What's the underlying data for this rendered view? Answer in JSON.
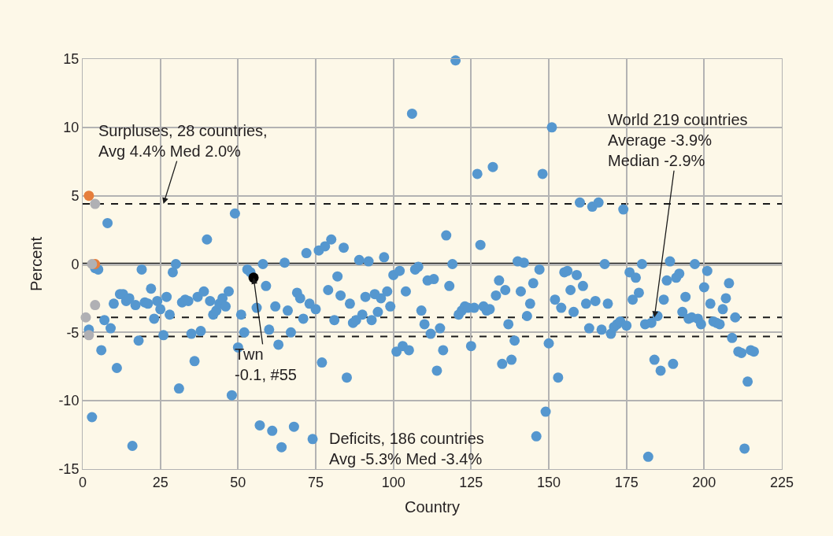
{
  "chart_data": {
    "type": "scatter",
    "xlabel": "Country",
    "ylabel": "Percent",
    "xlim": [
      0,
      225
    ],
    "xticks": [
      0,
      25,
      50,
      75,
      100,
      125,
      150,
      175,
      200,
      225
    ],
    "ylim": [
      -15,
      15
    ],
    "yticks": [
      -15,
      -10,
      -5,
      0,
      5,
      10,
      15
    ],
    "grid": true,
    "marker": "circle",
    "series": [
      {
        "color": "#5597cf",
        "x": [
          2,
          3,
          4,
          5,
          6,
          7,
          8,
          9,
          10,
          11,
          12,
          13,
          14,
          15,
          16,
          17,
          18,
          19,
          20,
          21,
          22,
          23,
          24,
          25,
          26,
          27,
          28,
          29,
          30,
          31,
          32,
          33,
          34,
          35,
          36,
          37,
          38,
          39,
          40,
          41,
          42,
          43,
          44,
          45,
          46,
          47,
          48,
          49,
          50,
          51,
          52,
          53,
          54,
          56,
          57,
          58,
          59,
          60,
          61,
          62,
          63,
          64,
          65,
          66,
          67,
          68,
          69,
          70,
          71,
          72,
          73,
          74,
          75,
          76,
          77,
          78,
          79,
          80,
          81,
          82,
          83,
          84,
          85,
          86,
          87,
          88,
          89,
          90,
          91,
          92,
          93,
          94,
          95,
          96,
          97,
          98,
          99,
          100,
          101,
          102,
          103,
          104,
          105,
          106,
          107,
          108,
          109,
          110,
          111,
          112,
          113,
          114,
          115,
          116,
          117,
          118,
          119,
          120,
          121,
          122,
          123,
          124,
          125,
          126,
          127,
          128,
          129,
          130,
          131,
          132,
          133,
          134,
          135,
          136,
          137,
          138,
          139,
          140,
          141,
          142,
          143,
          144,
          145,
          146,
          147,
          148,
          149,
          150,
          151,
          152,
          153,
          154,
          155,
          156,
          157,
          158,
          159,
          160,
          161,
          162,
          163,
          164,
          165,
          166,
          167,
          168,
          169,
          170,
          171,
          172,
          173,
          174,
          175,
          176,
          177,
          178,
          179,
          180,
          181,
          182,
          183,
          184,
          185,
          186,
          187,
          188,
          189,
          190,
          191,
          192,
          193,
          194,
          195,
          196,
          197,
          198,
          199,
          200,
          201,
          202,
          203,
          204,
          205,
          206,
          207,
          208,
          209,
          210,
          211,
          212,
          213,
          214,
          215,
          216
        ],
        "values": [
          -4.8,
          -11.2,
          -0.3,
          -0.4,
          -6.3,
          -4.1,
          3.0,
          -4.7,
          -2.9,
          -7.6,
          -2.2,
          -2.2,
          -2.7,
          -2.5,
          -13.3,
          -3.0,
          -5.6,
          -0.4,
          -2.8,
          -2.9,
          -1.8,
          -4.0,
          -2.7,
          -3.3,
          -5.2,
          -2.4,
          -3.7,
          -0.6,
          0,
          -9.1,
          -2.8,
          -2.6,
          -2.7,
          -5.1,
          -7.1,
          -2.4,
          -4.9,
          -2.0,
          1.8,
          -2.7,
          -3.7,
          -3.4,
          -2.9,
          -2.5,
          -3.1,
          -2.0,
          -9.6,
          3.7,
          -6.1,
          -3.7,
          -5.0,
          -0.4,
          -0.6,
          -3.2,
          -11.8,
          0,
          -1.6,
          -4.8,
          -12.2,
          -3.1,
          -5.9,
          -13.4,
          0.1,
          -3.4,
          -5.0,
          -11.9,
          -2.1,
          -2.5,
          -4.0,
          0.8,
          -2.9,
          -12.8,
          -3.3,
          1.0,
          -7.2,
          1.3,
          -1.9,
          1.8,
          -4.1,
          -0.9,
          -2.3,
          1.2,
          -8.3,
          -2.9,
          -4.3,
          -4.1,
          0.3,
          -3.7,
          -2.4,
          0.2,
          -4.1,
          -2.2,
          -3.5,
          -2.5,
          0.5,
          -2.0,
          -3.1,
          -0.8,
          -6.4,
          -0.5,
          -6.0,
          -2.0,
          -6.3,
          11.0,
          -0.4,
          -0.2,
          -3.4,
          -4.4,
          -1.2,
          -5.1,
          -1.1,
          -7.8,
          -4.7,
          -6.3,
          2.1,
          -1.6,
          0,
          14.9,
          -3.7,
          -3.4,
          -3.1,
          -3.2,
          -6.0,
          -3.2,
          6.6,
          1.4,
          -3.1,
          -3.4,
          -3.3,
          7.1,
          -2.3,
          -1.2,
          -7.3,
          -1.9,
          -4.4,
          -7.0,
          -5.6,
          0.2,
          -2.0,
          0.1,
          -3.8,
          -2.9,
          -1.4,
          -12.6,
          -0.4,
          6.6,
          -10.8,
          -5.8,
          10.0,
          -2.6,
          -8.3,
          -3.2,
          -0.6,
          -0.5,
          -1.9,
          -3.5,
          -0.8,
          4.5,
          -1.6,
          -2.9,
          -4.7,
          4.2,
          -2.7,
          4.5,
          -4.8,
          0,
          -2.9,
          -5.1,
          -4.6,
          -4.4,
          -4.2,
          4.0,
          -4.5,
          -0.6,
          -2.6,
          -1.0,
          -2.1,
          0,
          -4.4,
          -14.1,
          -4.3,
          -7.0,
          -3.8,
          -7.8,
          -2.6,
          -1.2,
          0.2,
          -7.3,
          -1.0,
          -0.7,
          -3.5,
          -2.4,
          -4.0,
          -3.9,
          0,
          -4.0,
          -4.4,
          -1.7,
          -0.5,
          -2.9,
          -4.2,
          -4.3,
          -4.4,
          -3.3,
          -2.5,
          -1.4,
          -5.4,
          -3.9,
          -6.4,
          -6.5,
          -13.5,
          -8.6,
          -6.3,
          -6.4
        ]
      },
      {
        "color": "#e67e3c",
        "x": [
          2,
          4
        ],
        "values": [
          5.0,
          0
        ]
      },
      {
        "color": "#b0b0b4",
        "x": [
          1,
          2,
          3,
          4,
          4
        ],
        "values": [
          -3.9,
          -5.2,
          0,
          -3.0,
          4.4
        ]
      },
      {
        "color": "#000000",
        "x": [
          55
        ],
        "values": [
          -1.0
        ]
      }
    ],
    "ref_lines": [
      {
        "axis": "y",
        "value": 4.4,
        "line_style": "dashed",
        "color": "#1a1a1a"
      },
      {
        "axis": "y",
        "value": 0,
        "line_style": "solid",
        "color": "#1a1a1a"
      },
      {
        "axis": "y",
        "value": -3.9,
        "line_style": "dashed",
        "color": "#1a1a1a"
      },
      {
        "axis": "y",
        "value": -5.3,
        "line_style": "dashed",
        "color": "#1a1a1a"
      }
    ],
    "annotations": [
      {
        "text": "Surpluses, 28 countries,\nAvg 4.4% Med 2.0%",
        "x": 26,
        "y": 4.4
      },
      {
        "text": "World 219 countries\nAverage -3.9%\nMedian -2.9%",
        "x": 184,
        "y": -3.9
      },
      {
        "text": "Twn\n-0.1, #55",
        "x": 55,
        "y": -1.0
      },
      "Deficits, 186 countries\nAvg -5.3% Med -3.4%"
    ]
  }
}
